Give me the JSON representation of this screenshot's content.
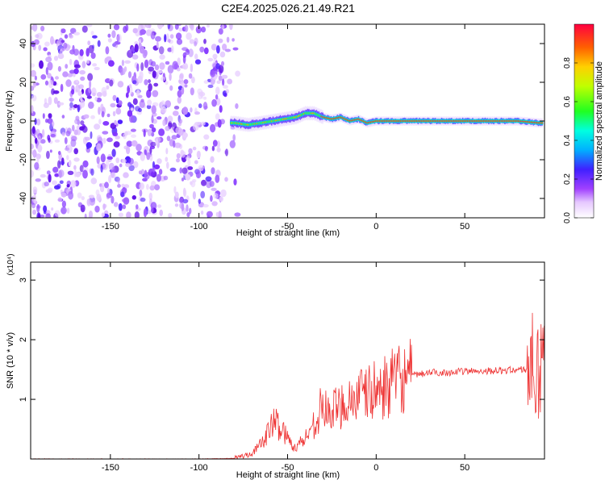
{
  "title": "C2E4.2025.026.21.49.R21",
  "chart_data": [
    {
      "type": "heatmap",
      "title": "",
      "xlabel": "Height of straight line (km)",
      "ylabel": "Frequency (Hz)",
      "xlim": [
        -195,
        95
      ],
      "ylim": [
        -50,
        50
      ],
      "xticks": [
        -150,
        -100,
        -50,
        0,
        50
      ],
      "yticks": [
        -40,
        -20,
        0,
        20,
        40
      ],
      "grid": false,
      "colorbar": {
        "label": "Normalized spectral amplitude",
        "range": [
          0,
          1
        ],
        "ticks": [
          0.0,
          0.2,
          0.4,
          0.6,
          0.8
        ]
      },
      "ridge": [
        [
          -80,
          -1
        ],
        [
          -72,
          -2
        ],
        [
          -65,
          -1
        ],
        [
          -58,
          0
        ],
        [
          -52,
          1
        ],
        [
          -45,
          2
        ],
        [
          -40,
          4
        ],
        [
          -35,
          4
        ],
        [
          -30,
          2
        ],
        [
          -25,
          1
        ],
        [
          -20,
          2
        ],
        [
          -15,
          0
        ],
        [
          -10,
          1
        ],
        [
          -5,
          -1
        ],
        [
          0,
          0
        ],
        [
          10,
          0
        ],
        [
          20,
          0
        ],
        [
          40,
          0
        ],
        [
          60,
          0
        ],
        [
          80,
          0
        ],
        [
          92,
          -1
        ]
      ],
      "noise_region": [
        -195,
        -78
      ]
    },
    {
      "type": "line",
      "title": "",
      "xlabel": "Height of straight line (km)",
      "ylabel": "SNR (10 * v/v)",
      "scale_label": "(x10⁴)",
      "xlim": [
        -195,
        95
      ],
      "ylim": [
        0,
        3.3
      ],
      "xticks": [
        -150,
        -100,
        -50,
        0,
        50
      ],
      "yticks": [
        1,
        2,
        3
      ],
      "color": "#ee3333",
      "grid": false,
      "series": [
        {
          "x": [
            -195,
            -150,
            -100,
            -80,
            -75,
            -70,
            -65,
            -60,
            -57,
            -55,
            -52,
            -50,
            -48,
            -45,
            -42,
            -40,
            -38,
            -35,
            -32,
            -30,
            -27,
            -25,
            -22,
            -20,
            -15,
            -10,
            -5,
            0,
            5,
            10,
            15,
            20,
            25,
            30,
            40,
            50,
            60,
            70,
            80,
            85,
            88,
            90,
            92,
            94
          ],
          "y": [
            0.0,
            0.0,
            0.0,
            0.01,
            0.05,
            0.1,
            0.25,
            0.5,
            0.65,
            0.55,
            0.45,
            0.35,
            0.25,
            0.2,
            0.3,
            0.35,
            0.45,
            0.6,
            0.8,
            0.9,
            0.75,
            0.8,
            0.85,
            0.9,
            1.0,
            1.05,
            1.1,
            1.15,
            1.2,
            1.3,
            1.35,
            1.4,
            1.42,
            1.45,
            1.45,
            1.47,
            1.48,
            1.48,
            1.5,
            1.5,
            1.6,
            1.3,
            1.4,
            1.45
          ]
        }
      ]
    }
  ]
}
